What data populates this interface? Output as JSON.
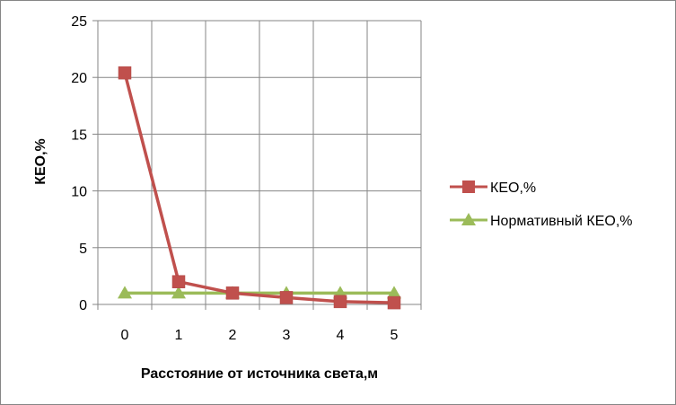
{
  "chart_data": {
    "type": "line",
    "x": [
      0,
      1,
      2,
      3,
      4,
      5
    ],
    "categories": [
      "0",
      "1",
      "2",
      "3",
      "4",
      "5"
    ],
    "series": [
      {
        "name": "КЕО,%",
        "values": [
          20.4,
          2.0,
          1.0,
          0.6,
          0.25,
          0.15
        ],
        "color": "#c0504d",
        "marker": "square"
      },
      {
        "name": "Нормативный КЕО,%",
        "values": [
          1.0,
          1.0,
          1.0,
          1.0,
          1.0,
          1.0
        ],
        "color": "#9bbb59",
        "marker": "triangle"
      }
    ],
    "xlabel": "Расстояние от источника света,м",
    "ylabel": "КЕО,%",
    "ylim": [
      0,
      25
    ],
    "yticks": [
      "0",
      "5",
      "10",
      "15",
      "20",
      "25"
    ],
    "grid": true,
    "legend_position": "right"
  }
}
